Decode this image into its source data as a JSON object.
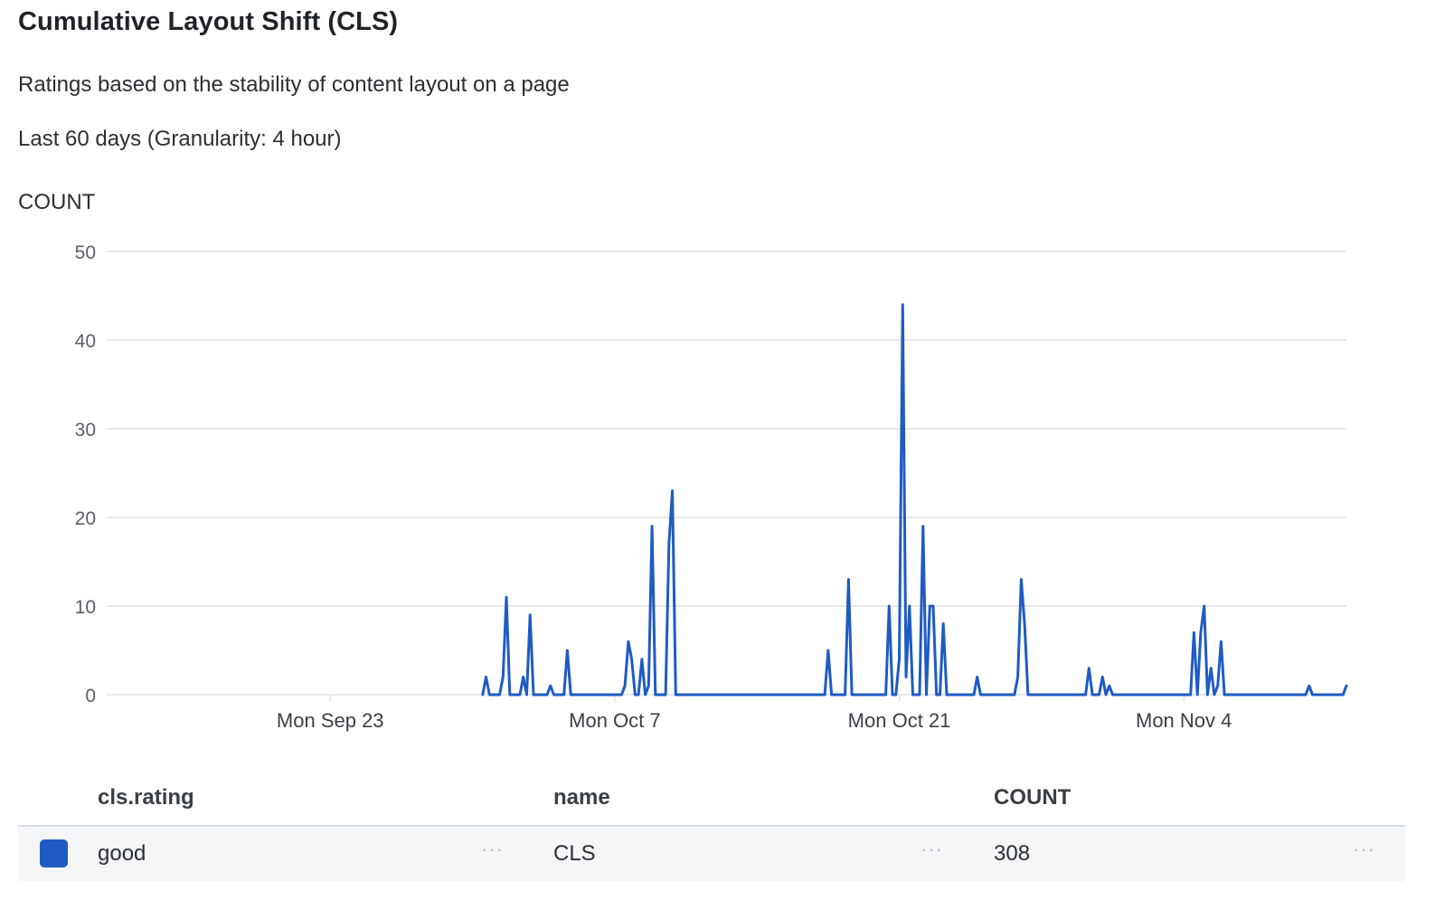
{
  "header": {
    "title": "Cumulative Layout Shift (CLS)",
    "subtitle": "Ratings based on the stability of content layout on a page",
    "range": "Last 60 days (Granularity: 4 hour)"
  },
  "colors": {
    "series": "#1f5bc4",
    "grid": "#dde1e7",
    "axis_text": "#5a5f66"
  },
  "chart_data": {
    "type": "line",
    "title": "Cumulative Layout Shift (CLS)",
    "ylabel": "COUNT",
    "ylim": [
      0,
      50
    ],
    "yticks": [
      0,
      10,
      20,
      30,
      40,
      50
    ],
    "xlim": [
      "2024-09-12",
      "2024-11-12"
    ],
    "xticks": [
      {
        "date": "2024-09-23",
        "label": "Mon Sep 23"
      },
      {
        "date": "2024-10-07",
        "label": "Mon Oct 7"
      },
      {
        "date": "2024-10-21",
        "label": "Mon Oct 21"
      },
      {
        "date": "2024-11-04",
        "label": "Mon Nov 4"
      }
    ],
    "grid": true,
    "series": [
      {
        "name": "good",
        "points": [
          [
            "2024-09-30 12:00",
            0
          ],
          [
            "2024-09-30 16:00",
            2
          ],
          [
            "2024-09-30 20:00",
            0
          ],
          [
            "2024-10-01 08:00",
            0
          ],
          [
            "2024-10-01 12:00",
            2
          ],
          [
            "2024-10-01 16:00",
            11
          ],
          [
            "2024-10-01 20:00",
            0
          ],
          [
            "2024-10-02 08:00",
            0
          ],
          [
            "2024-10-02 12:00",
            2
          ],
          [
            "2024-10-02 16:00",
            0
          ],
          [
            "2024-10-02 20:00",
            9
          ],
          [
            "2024-10-03 00:00",
            0
          ],
          [
            "2024-10-03 16:00",
            0
          ],
          [
            "2024-10-03 20:00",
            1
          ],
          [
            "2024-10-04 00:00",
            0
          ],
          [
            "2024-10-04 12:00",
            0
          ],
          [
            "2024-10-04 16:00",
            5
          ],
          [
            "2024-10-04 20:00",
            0
          ],
          [
            "2024-10-07 08:00",
            0
          ],
          [
            "2024-10-07 12:00",
            1
          ],
          [
            "2024-10-07 16:00",
            6
          ],
          [
            "2024-10-07 20:00",
            4
          ],
          [
            "2024-10-08 00:00",
            0
          ],
          [
            "2024-10-08 04:00",
            0
          ],
          [
            "2024-10-08 08:00",
            4
          ],
          [
            "2024-10-08 12:00",
            0
          ],
          [
            "2024-10-08 16:00",
            1
          ],
          [
            "2024-10-08 20:00",
            19
          ],
          [
            "2024-10-09 00:00",
            0
          ],
          [
            "2024-10-09 12:00",
            0
          ],
          [
            "2024-10-09 16:00",
            17
          ],
          [
            "2024-10-09 20:00",
            23
          ],
          [
            "2024-10-10 00:00",
            0
          ],
          [
            "2024-10-17 08:00",
            0
          ],
          [
            "2024-10-17 12:00",
            5
          ],
          [
            "2024-10-17 16:00",
            0
          ],
          [
            "2024-10-18 08:00",
            0
          ],
          [
            "2024-10-18 12:00",
            13
          ],
          [
            "2024-10-18 16:00",
            0
          ],
          [
            "2024-10-20 08:00",
            0
          ],
          [
            "2024-10-20 12:00",
            10
          ],
          [
            "2024-10-20 16:00",
            0
          ],
          [
            "2024-10-20 20:00",
            0
          ],
          [
            "2024-10-21 00:00",
            4
          ],
          [
            "2024-10-21 04:00",
            44
          ],
          [
            "2024-10-21 08:00",
            2
          ],
          [
            "2024-10-21 12:00",
            10
          ],
          [
            "2024-10-21 16:00",
            0
          ],
          [
            "2024-10-22 00:00",
            0
          ],
          [
            "2024-10-22 04:00",
            19
          ],
          [
            "2024-10-22 08:00",
            0
          ],
          [
            "2024-10-22 12:00",
            10
          ],
          [
            "2024-10-22 16:00",
            10
          ],
          [
            "2024-10-22 20:00",
            0
          ],
          [
            "2024-10-23 00:00",
            0
          ],
          [
            "2024-10-23 04:00",
            8
          ],
          [
            "2024-10-23 08:00",
            0
          ],
          [
            "2024-10-24 16:00",
            0
          ],
          [
            "2024-10-24 20:00",
            2
          ],
          [
            "2024-10-25 00:00",
            0
          ],
          [
            "2024-10-26 16:00",
            0
          ],
          [
            "2024-10-26 20:00",
            2
          ],
          [
            "2024-10-27 00:00",
            13
          ],
          [
            "2024-10-27 04:00",
            8
          ],
          [
            "2024-10-27 08:00",
            0
          ],
          [
            "2024-10-30 04:00",
            0
          ],
          [
            "2024-10-30 08:00",
            3
          ],
          [
            "2024-10-30 12:00",
            0
          ],
          [
            "2024-10-30 20:00",
            0
          ],
          [
            "2024-10-31 00:00",
            2
          ],
          [
            "2024-10-31 04:00",
            0
          ],
          [
            "2024-10-31 08:00",
            1
          ],
          [
            "2024-10-31 12:00",
            0
          ],
          [
            "2024-11-04 00:00",
            0
          ],
          [
            "2024-11-04 08:00",
            0
          ],
          [
            "2024-11-04 12:00",
            7
          ],
          [
            "2024-11-04 16:00",
            0
          ],
          [
            "2024-11-04 20:00",
            7
          ],
          [
            "2024-11-05 00:00",
            10
          ],
          [
            "2024-11-05 04:00",
            0
          ],
          [
            "2024-11-05 08:00",
            3
          ],
          [
            "2024-11-05 12:00",
            0
          ],
          [
            "2024-11-05 16:00",
            1
          ],
          [
            "2024-11-05 20:00",
            6
          ],
          [
            "2024-11-06 00:00",
            0
          ],
          [
            "2024-11-10 00:00",
            0
          ],
          [
            "2024-11-10 04:00",
            1
          ],
          [
            "2024-11-10 08:00",
            0
          ],
          [
            "2024-11-11 20:00",
            0
          ],
          [
            "2024-11-12 00:00",
            1
          ]
        ]
      }
    ]
  },
  "table": {
    "headers": [
      "cls.rating",
      "name",
      "COUNT"
    ],
    "rows": [
      {
        "rating": "good",
        "name": "CLS",
        "count": "308",
        "color": "#1f5bc4"
      }
    ],
    "more_glyph": "···"
  }
}
